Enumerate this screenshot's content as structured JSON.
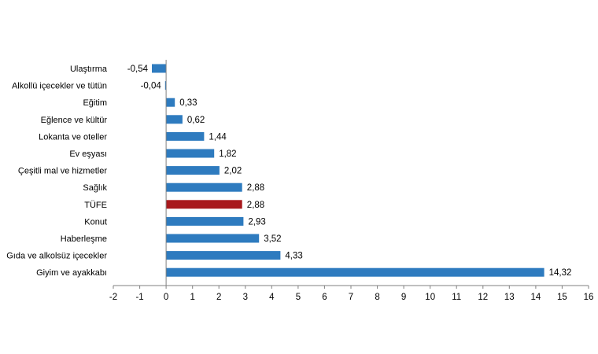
{
  "chart_data": {
    "type": "bar",
    "orientation": "horizontal",
    "categories": [
      "Ulaştırma",
      "Alkollü içecekler ve tütün",
      "Eğitim",
      "Eğlence ve kültür",
      "Lokanta ve oteller",
      "Ev eşyası",
      "Çeşitli mal ve hizmetler",
      "Sağlık",
      "TÜFE",
      "Konut",
      "Haberleşme",
      "Gıda ve alkolsüz içecekler",
      "Giyim ve ayakkabı"
    ],
    "values": [
      -0.54,
      -0.04,
      0.33,
      0.62,
      1.44,
      1.82,
      2.02,
      2.88,
      2.88,
      2.93,
      3.52,
      4.33,
      14.32
    ],
    "value_labels": [
      "-0,54",
      "-0,04",
      "0,33",
      "0,62",
      "1,44",
      "1,82",
      "2,02",
      "2,88",
      "2,88",
      "2,93",
      "3,52",
      "4,33",
      "14,32"
    ],
    "highlight_index": 8,
    "xlim": [
      -2,
      16
    ],
    "xticks": [
      -2,
      -1,
      0,
      1,
      2,
      3,
      4,
      5,
      6,
      7,
      8,
      9,
      10,
      11,
      12,
      13,
      14,
      15,
      16
    ],
    "title": "",
    "xlabel": "",
    "ylabel": "",
    "grid": false,
    "legend": "none",
    "colors": {
      "bar": "#2e7bbf",
      "highlight": "#a8181c",
      "axis": "#808080"
    }
  }
}
